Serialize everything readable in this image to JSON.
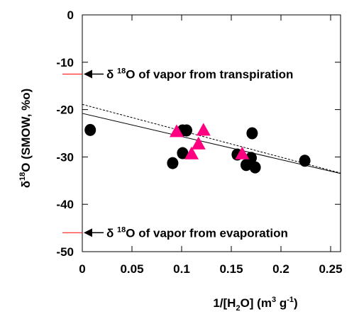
{
  "chart_data": {
    "type": "scatter",
    "x_label": [
      "1/[H",
      "2",
      "O] (m",
      "3",
      " g",
      "-1",
      ")"
    ],
    "y_label": [
      "δ",
      "18",
      "O (SMOW, %o)"
    ],
    "xlim": [
      0,
      0.26
    ],
    "xticks": [
      0,
      0.05,
      0.1,
      0.15,
      0.2,
      0.25
    ],
    "ylim": [
      -50,
      0
    ],
    "yticks": [
      -50,
      -40,
      -30,
      -20,
      -10,
      0
    ],
    "series": [
      {
        "marker": "circle",
        "color": "#000000",
        "x": [
          0.008,
          0.091,
          0.101,
          0.105,
          0.101,
          0.156,
          0.165,
          0.17,
          0.171,
          0.174,
          0.224
        ],
        "values": [
          -24.3,
          -31.3,
          -24.4,
          -24.4,
          -29.2,
          -29.5,
          -31.7,
          -30.2,
          -25.0,
          -32.2,
          -30.8
        ]
      },
      {
        "marker": "triangle",
        "color": "#ff0080",
        "x": [
          0.095,
          0.11,
          0.117,
          0.122,
          0.161
        ],
        "values": [
          -24.6,
          -29.3,
          -27.2,
          -24.3,
          -29.3
        ]
      }
    ],
    "lines": [
      {
        "style": "solid",
        "color": "#000000",
        "x": [
          0,
          0.26
        ],
        "values": [
          -20.8,
          -33.5
        ]
      },
      {
        "style": "dashed",
        "color": "#000000",
        "x": [
          0,
          0.26
        ],
        "values": [
          -18.9,
          -33.4
        ]
      }
    ],
    "annotations": [
      {
        "y": -12.5,
        "color": "#ff0000",
        "text": [
          "δ ",
          "18",
          "O of vapor from transpiration"
        ]
      },
      {
        "y": -46,
        "color": "#ff0000",
        "text": [
          "δ ",
          "18",
          "O of vapor from evaporation"
        ]
      }
    ]
  }
}
